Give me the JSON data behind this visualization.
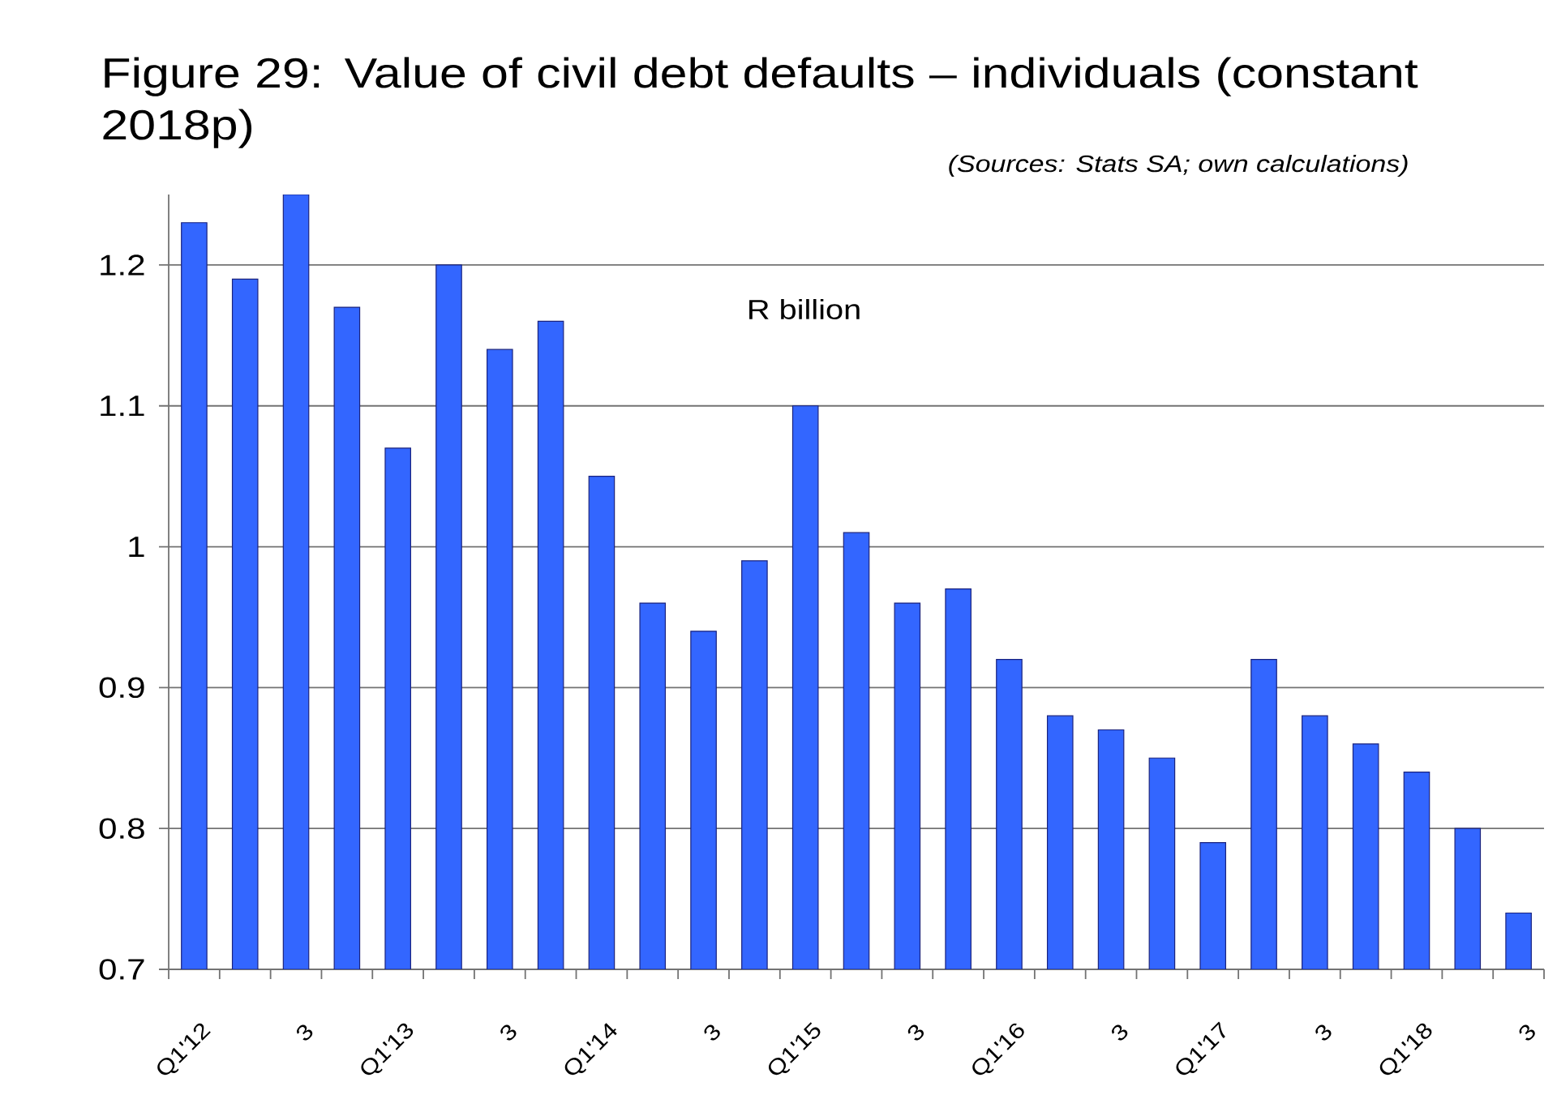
{
  "chart_data": {
    "type": "bar",
    "title": "Figure 29: Value of civil debt defaults – individuals (constant 2018p)",
    "ylabel": "R billion",
    "annotations": [
      "(Sources: Stats SA; own calculations)"
    ],
    "categories": [
      "Q1'12",
      null,
      "3",
      null,
      "Q1'13",
      null,
      "3",
      null,
      "Q1'14",
      null,
      "3",
      null,
      "Q1'15",
      null,
      "3",
      null,
      "Q1'16",
      null,
      "3",
      null,
      "Q1'17",
      null,
      "3",
      null,
      "Q1'18",
      null,
      "3"
    ],
    "values": [
      1.23,
      1.19,
      1.25,
      1.17,
      1.07,
      1.2,
      1.14,
      1.16,
      1.05,
      0.96,
      0.94,
      0.99,
      1.1,
      1.01,
      0.96,
      0.97,
      0.92,
      0.88,
      0.87,
      0.85,
      0.79,
      0.92,
      0.88,
      0.86,
      0.84,
      0.8,
      0.74
    ],
    "color": "#3366ff",
    "ylim": [
      0.7,
      1.25
    ],
    "yticks": [
      0.7,
      0.8,
      0.9,
      1,
      1.1,
      1.2
    ],
    "grid": "y"
  }
}
